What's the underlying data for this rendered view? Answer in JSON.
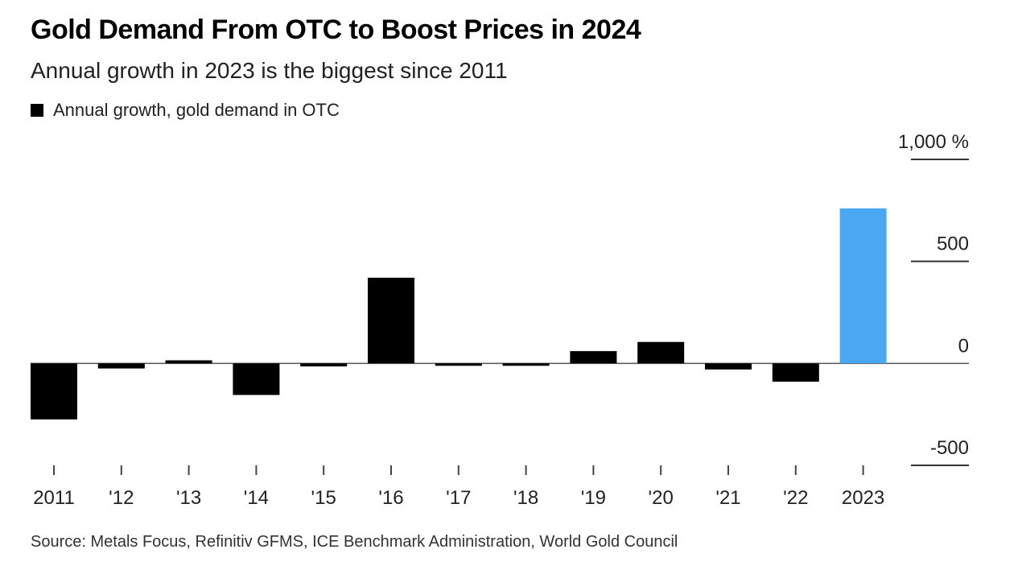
{
  "title": "Gold Demand From OTC to Boost Prices in 2024",
  "subtitle": "Annual growth in 2023 is the biggest since 2011",
  "source": "Source: Metals Focus, Refinitiv GFMS, ICE Benchmark Administration, World Gold Council",
  "legend": {
    "label": "Annual growth, gold demand in OTC"
  },
  "colors": {
    "default_bar": "#000000",
    "highlight_bar": "#4aa8f2",
    "axis": "#333333"
  },
  "chart_data": {
    "type": "bar",
    "title": "Gold Demand From OTC to Boost Prices in 2024",
    "subtitle": "Annual growth in 2023 is the biggest since 2011",
    "xlabel": "",
    "ylabel": "",
    "categories": [
      "2011",
      "'12",
      "'13",
      "'14",
      "'15",
      "'16",
      "'17",
      "'18",
      "'19",
      "'20",
      "'21",
      "'22",
      "2023"
    ],
    "series": [
      {
        "name": "Annual growth, gold demand in OTC",
        "values": [
          -275,
          -25,
          15,
          -155,
          -15,
          420,
          -5,
          -5,
          60,
          105,
          -30,
          -90,
          760
        ]
      }
    ],
    "highlight_index": 12,
    "ylim": [
      -500,
      1000
    ],
    "yticks": [
      -500,
      0,
      500,
      1000
    ],
    "ytick_labels": [
      "-500",
      "0",
      "500",
      "1,000 %"
    ],
    "grid": false,
    "legend_position": "top-left",
    "y_axis_side": "right"
  }
}
